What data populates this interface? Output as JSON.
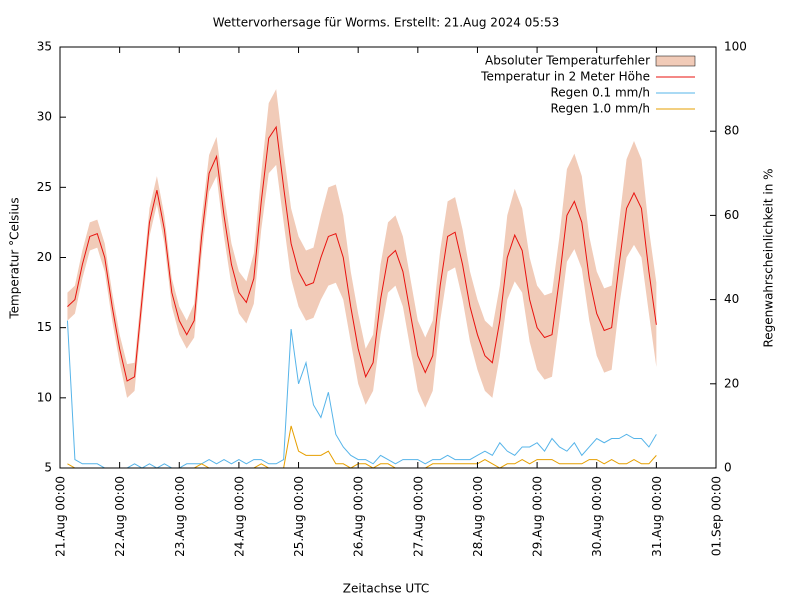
{
  "chart_data": {
    "type": "line",
    "title": "Wettervorhersage für Worms. Erstellt: 21.Aug 2024 05:53",
    "x_label": "Zeitachse UTC",
    "y_label": "Temperatur °Celsius",
    "y2_label": "Regenwahrscheinlichkeit in %",
    "x": [
      "21.Aug 03:00",
      "21.Aug 06:00",
      "21.Aug 09:00",
      "21.Aug 12:00",
      "21.Aug 15:00",
      "21.Aug 18:00",
      "21.Aug 21:00",
      "22.Aug 00:00",
      "22.Aug 03:00",
      "22.Aug 06:00",
      "22.Aug 09:00",
      "22.Aug 12:00",
      "22.Aug 15:00",
      "22.Aug 18:00",
      "22.Aug 21:00",
      "23.Aug 00:00",
      "23.Aug 03:00",
      "23.Aug 06:00",
      "23.Aug 09:00",
      "23.Aug 12:00",
      "23.Aug 15:00",
      "23.Aug 18:00",
      "23.Aug 21:00",
      "24.Aug 00:00",
      "24.Aug 03:00",
      "24.Aug 06:00",
      "24.Aug 09:00",
      "24.Aug 12:00",
      "24.Aug 15:00",
      "24.Aug 18:00",
      "24.Aug 21:00",
      "25.Aug 00:00",
      "25.Aug 03:00",
      "25.Aug 06:00",
      "25.Aug 09:00",
      "25.Aug 12:00",
      "25.Aug 15:00",
      "25.Aug 18:00",
      "25.Aug 21:00",
      "26.Aug 00:00",
      "26.Aug 03:00",
      "26.Aug 06:00",
      "26.Aug 09:00",
      "26.Aug 12:00",
      "26.Aug 15:00",
      "26.Aug 18:00",
      "26.Aug 21:00",
      "27.Aug 00:00",
      "27.Aug 03:00",
      "27.Aug 06:00",
      "27.Aug 09:00",
      "27.Aug 12:00",
      "27.Aug 15:00",
      "27.Aug 18:00",
      "27.Aug 21:00",
      "28.Aug 00:00",
      "28.Aug 03:00",
      "28.Aug 06:00",
      "28.Aug 09:00",
      "28.Aug 12:00",
      "28.Aug 15:00",
      "28.Aug 18:00",
      "28.Aug 21:00",
      "29.Aug 00:00",
      "29.Aug 03:00",
      "29.Aug 06:00",
      "29.Aug 09:00",
      "29.Aug 12:00",
      "29.Aug 15:00",
      "29.Aug 18:00",
      "29.Aug 21:00",
      "30.Aug 00:00",
      "30.Aug 03:00",
      "30.Aug 06:00",
      "30.Aug 09:00",
      "30.Aug 12:00",
      "30.Aug 15:00",
      "30.Aug 18:00",
      "30.Aug 21:00",
      "31.Aug 00:00"
    ],
    "series": [
      {
        "name": "Absoluter Temperaturfehler",
        "style": "band",
        "around": 1,
        "color": "#f1cbb8",
        "values": [
          1,
          1,
          1,
          1,
          1,
          1,
          1,
          1,
          1.2,
          1,
          1,
          1,
          1,
          1,
          1,
          1,
          1,
          1.2,
          1.3,
          1.3,
          1.4,
          1.5,
          1.5,
          1.5,
          1.5,
          1.8,
          2,
          2.5,
          2.7,
          2.5,
          2.5,
          2.5,
          2.5,
          2.5,
          3,
          3.5,
          3.5,
          3,
          2.5,
          2.5,
          2,
          2,
          2.5,
          2.5,
          2.5,
          2.5,
          2.5,
          2.5,
          2.5,
          2.5,
          2.5,
          2.5,
          2.5,
          2.5,
          2.5,
          2.5,
          2.5,
          2.5,
          2.5,
          3,
          3.3,
          3,
          3,
          3,
          3,
          3,
          3,
          3.3,
          3.4,
          3.3,
          3,
          3,
          3,
          3,
          3,
          3.5,
          3.7,
          3.5,
          3,
          3
        ]
      },
      {
        "name": "Temperatur in 2 Meter Höhe",
        "style": "line",
        "color": "#e8120e",
        "values": [
          16.5,
          17,
          19.5,
          21.5,
          21.7,
          20,
          16.5,
          13.5,
          11.2,
          11.5,
          17,
          22.5,
          24.8,
          22,
          17.5,
          15.5,
          14.5,
          15.5,
          21.5,
          26,
          27.2,
          23,
          19.5,
          17.5,
          16.8,
          18.5,
          24,
          28.5,
          29.3,
          25,
          21,
          19,
          18,
          18.2,
          20,
          21.5,
          21.7,
          20,
          16.5,
          13.5,
          11.5,
          12.5,
          17,
          20,
          20.5,
          19,
          16,
          13,
          11.8,
          13,
          18,
          21.5,
          21.8,
          19.5,
          16.5,
          14.5,
          13,
          12.5,
          15.5,
          20,
          21.6,
          20.5,
          17,
          15,
          14.3,
          14.5,
          18.5,
          23,
          24,
          22.5,
          18.5,
          16,
          14.8,
          15,
          19.5,
          23.5,
          24.6,
          23.5,
          19,
          15.2
        ]
      },
      {
        "name": "Regen 0.1 mm/h",
        "style": "line",
        "axis": "y2",
        "color": "#56b4e9",
        "values": [
          35,
          2,
          1,
          1,
          1,
          0,
          0,
          0,
          0,
          1,
          0,
          1,
          0,
          1,
          0,
          0,
          1,
          1,
          1,
          2,
          1,
          2,
          1,
          2,
          1,
          2,
          2,
          1,
          1,
          2,
          33,
          20,
          25,
          15,
          12,
          18,
          8,
          5,
          3,
          2,
          2,
          1,
          3,
          2,
          1,
          2,
          2,
          2,
          1,
          2,
          2,
          3,
          2,
          2,
          2,
          3,
          4,
          3,
          6,
          4,
          3,
          5,
          5,
          6,
          4,
          7,
          5,
          4,
          6,
          3,
          5,
          7,
          6,
          7,
          7,
          8,
          7,
          7,
          5,
          8
        ]
      },
      {
        "name": "Regen 1.0 mm/h",
        "style": "line",
        "axis": "y2",
        "color": "#e69f00",
        "values": [
          1,
          0,
          0,
          0,
          0,
          0,
          0,
          0,
          0,
          0,
          0,
          0,
          0,
          0,
          0,
          0,
          0,
          0,
          1,
          0,
          0,
          0,
          0,
          0,
          0,
          0,
          1,
          0,
          0,
          0,
          10,
          4,
          3,
          3,
          3,
          4,
          1,
          1,
          0,
          1,
          1,
          0,
          1,
          1,
          0,
          0,
          0,
          0,
          0,
          1,
          1,
          1,
          1,
          1,
          1,
          1,
          2,
          1,
          0,
          1,
          1,
          2,
          1,
          2,
          2,
          2,
          1,
          1,
          1,
          1,
          2,
          2,
          1,
          2,
          1,
          1,
          2,
          1,
          1,
          3
        ]
      }
    ],
    "xlim": [
      "21.Aug 00:00",
      "01.Sep 00:00"
    ],
    "xticks": [
      "21.Aug 00:00",
      "22.Aug 00:00",
      "23.Aug 00:00",
      "24.Aug 00:00",
      "25.Aug 00:00",
      "26.Aug 00:00",
      "27.Aug 00:00",
      "28.Aug 00:00",
      "29.Aug 00:00",
      "30.Aug 00:00",
      "31.Aug 00:00",
      "01.Sep 00:00"
    ],
    "ylim": [
      5,
      35
    ],
    "yticks": [
      5,
      10,
      15,
      20,
      25,
      30,
      35
    ],
    "y2lim": [
      0,
      100
    ],
    "y2ticks": [
      0,
      20,
      40,
      60,
      80,
      100
    ],
    "legend": "upper-right"
  }
}
